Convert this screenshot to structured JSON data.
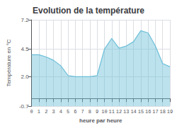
{
  "chart_data": {
    "type": "line",
    "title": "Evolution de la température",
    "xlabel": "heure par heure",
    "ylabel": "Température en °C",
    "x": [
      0,
      1,
      2,
      3,
      4,
      5,
      6,
      7,
      8,
      9,
      10,
      11,
      12,
      13,
      14,
      15,
      16,
      17,
      18,
      19
    ],
    "values": [
      4.0,
      4.0,
      3.8,
      3.5,
      3.0,
      2.1,
      2.0,
      2.0,
      2.0,
      2.1,
      4.5,
      5.5,
      4.6,
      4.8,
      5.2,
      6.2,
      6.0,
      4.8,
      3.2,
      2.9
    ],
    "xlim": [
      0,
      19
    ],
    "xticks": [
      0,
      1,
      2,
      3,
      4,
      5,
      6,
      7,
      8,
      9,
      10,
      11,
      12,
      13,
      14,
      15,
      16,
      17,
      18,
      19
    ],
    "ylim": [
      -0.7,
      7.2
    ],
    "yticks": [
      -0.7,
      {
        "value": 2.0,
        "label": "2.0"
      },
      4.5,
      7.2
    ],
    "color": "#6bbfd8",
    "grid": true
  }
}
